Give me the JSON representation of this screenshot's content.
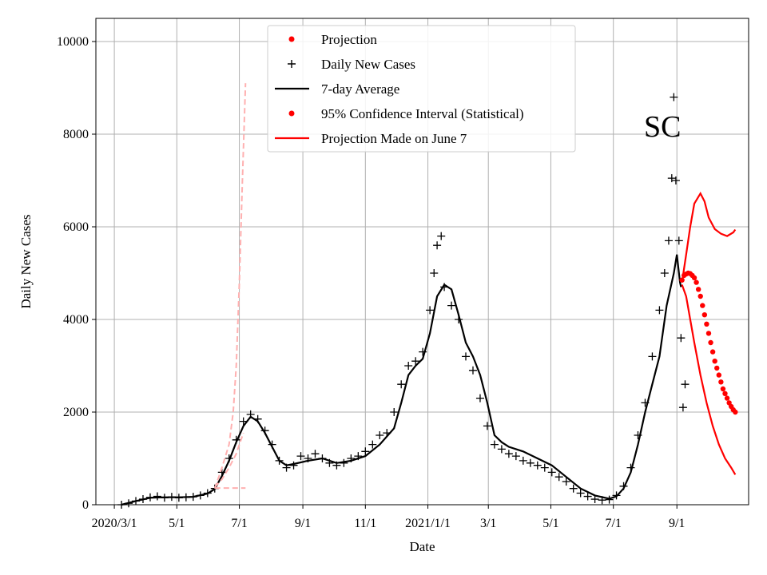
{
  "chart_data": {
    "type": "line",
    "xlabel": "Date",
    "ylabel": "Daily New Cases",
    "annotation": "SC",
    "xlim": [
      "2020-02-12",
      "2021-11-10"
    ],
    "ylim": [
      0,
      10500
    ],
    "grid": true,
    "legend_position": "top-center",
    "x_ticks": [
      {
        "date": "2020-03-01",
        "label": "2020/3/1"
      },
      {
        "date": "2020-05-01",
        "label": "5/1"
      },
      {
        "date": "2020-07-01",
        "label": "7/1"
      },
      {
        "date": "2020-09-01",
        "label": "9/1"
      },
      {
        "date": "2020-11-01",
        "label": "11/1"
      },
      {
        "date": "2021-01-01",
        "label": "2021/1/1"
      },
      {
        "date": "2021-03-01",
        "label": "3/1"
      },
      {
        "date": "2021-05-01",
        "label": "5/1"
      },
      {
        "date": "2021-07-01",
        "label": "7/1"
      },
      {
        "date": "2021-09-01",
        "label": "9/1"
      }
    ],
    "y_ticks": [
      0,
      2000,
      4000,
      6000,
      8000,
      10000
    ],
    "legend": [
      {
        "label": "Projection",
        "marker": "dot",
        "color": "#ff0000"
      },
      {
        "label": "Daily New Cases",
        "marker": "plus",
        "color": "#000000"
      },
      {
        "label": "7-day Average",
        "marker": "line",
        "color": "#000000"
      },
      {
        "label": "95% Confidence Interval (Statistical)",
        "marker": "dot",
        "color": "#ff0000"
      },
      {
        "label": "Projection Made on June 7",
        "marker": "line",
        "color": "#ff0000"
      }
    ],
    "series": [
      {
        "name": "Daily New Cases",
        "kind": "plus",
        "color": "#000000",
        "points": [
          [
            "2020-03-08",
            0
          ],
          [
            "2020-03-15",
            30
          ],
          [
            "2020-03-22",
            80
          ],
          [
            "2020-03-29",
            120
          ],
          [
            "2020-04-05",
            160
          ],
          [
            "2020-04-12",
            180
          ],
          [
            "2020-04-19",
            150
          ],
          [
            "2020-04-26",
            170
          ],
          [
            "2020-05-03",
            150
          ],
          [
            "2020-05-10",
            160
          ],
          [
            "2020-05-17",
            170
          ],
          [
            "2020-05-24",
            200
          ],
          [
            "2020-05-31",
            250
          ],
          [
            "2020-06-07",
            350
          ],
          [
            "2020-06-14",
            700
          ],
          [
            "2020-06-21",
            1000
          ],
          [
            "2020-06-28",
            1400
          ],
          [
            "2020-07-05",
            1800
          ],
          [
            "2020-07-12",
            1950
          ],
          [
            "2020-07-19",
            1850
          ],
          [
            "2020-07-26",
            1600
          ],
          [
            "2020-08-02",
            1300
          ],
          [
            "2020-08-09",
            950
          ],
          [
            "2020-08-16",
            800
          ],
          [
            "2020-08-23",
            850
          ],
          [
            "2020-08-30",
            1050
          ],
          [
            "2020-09-06",
            1000
          ],
          [
            "2020-09-13",
            1100
          ],
          [
            "2020-09-20",
            1000
          ],
          [
            "2020-09-27",
            900
          ],
          [
            "2020-10-04",
            850
          ],
          [
            "2020-10-11",
            900
          ],
          [
            "2020-10-18",
            1000
          ],
          [
            "2020-10-25",
            1050
          ],
          [
            "2020-11-01",
            1150
          ],
          [
            "2020-11-08",
            1300
          ],
          [
            "2020-11-15",
            1500
          ],
          [
            "2020-11-22",
            1550
          ],
          [
            "2020-11-29",
            2000
          ],
          [
            "2020-12-06",
            2600
          ],
          [
            "2020-12-13",
            3000
          ],
          [
            "2020-12-20",
            3100
          ],
          [
            "2020-12-27",
            3300
          ],
          [
            "2021-01-03",
            4200
          ],
          [
            "2021-01-07",
            5000
          ],
          [
            "2021-01-10",
            5600
          ],
          [
            "2021-01-14",
            5800
          ],
          [
            "2021-01-17",
            4700
          ],
          [
            "2021-01-24",
            4300
          ],
          [
            "2021-01-31",
            4000
          ],
          [
            "2021-02-07",
            3200
          ],
          [
            "2021-02-14",
            2900
          ],
          [
            "2021-02-21",
            2300
          ],
          [
            "2021-02-28",
            1700
          ],
          [
            "2021-03-07",
            1300
          ],
          [
            "2021-03-14",
            1200
          ],
          [
            "2021-03-21",
            1100
          ],
          [
            "2021-03-28",
            1050
          ],
          [
            "2021-04-04",
            950
          ],
          [
            "2021-04-11",
            900
          ],
          [
            "2021-04-18",
            850
          ],
          [
            "2021-04-25",
            800
          ],
          [
            "2021-05-02",
            700
          ],
          [
            "2021-05-09",
            600
          ],
          [
            "2021-05-16",
            500
          ],
          [
            "2021-05-23",
            350
          ],
          [
            "2021-05-30",
            250
          ],
          [
            "2021-06-06",
            180
          ],
          [
            "2021-06-13",
            120
          ],
          [
            "2021-06-20",
            100
          ],
          [
            "2021-06-27",
            110
          ],
          [
            "2021-07-04",
            200
          ],
          [
            "2021-07-11",
            400
          ],
          [
            "2021-07-18",
            800
          ],
          [
            "2021-07-25",
            1500
          ],
          [
            "2021-08-01",
            2200
          ],
          [
            "2021-08-08",
            3200
          ],
          [
            "2021-08-15",
            4200
          ],
          [
            "2021-08-20",
            5000
          ],
          [
            "2021-08-24",
            5700
          ],
          [
            "2021-08-27",
            7050
          ],
          [
            "2021-08-29",
            8800
          ],
          [
            "2021-08-31",
            7000
          ],
          [
            "2021-09-03",
            5700
          ],
          [
            "2021-09-05",
            3600
          ],
          [
            "2021-09-07",
            2100
          ],
          [
            "2021-09-09",
            2600
          ]
        ]
      },
      {
        "name": "7-day Average",
        "kind": "line",
        "color": "#000000",
        "points": [
          [
            "2020-03-08",
            0
          ],
          [
            "2020-03-22",
            80
          ],
          [
            "2020-04-05",
            150
          ],
          [
            "2020-04-19",
            160
          ],
          [
            "2020-05-03",
            160
          ],
          [
            "2020-05-17",
            170
          ],
          [
            "2020-05-31",
            240
          ],
          [
            "2020-06-07",
            340
          ],
          [
            "2020-06-14",
            620
          ],
          [
            "2020-06-21",
            950
          ],
          [
            "2020-06-28",
            1350
          ],
          [
            "2020-07-05",
            1700
          ],
          [
            "2020-07-12",
            1900
          ],
          [
            "2020-07-19",
            1800
          ],
          [
            "2020-07-26",
            1550
          ],
          [
            "2020-08-02",
            1250
          ],
          [
            "2020-08-09",
            950
          ],
          [
            "2020-08-16",
            850
          ],
          [
            "2020-08-23",
            880
          ],
          [
            "2020-09-06",
            950
          ],
          [
            "2020-09-20",
            1000
          ],
          [
            "2020-10-04",
            900
          ],
          [
            "2020-10-18",
            950
          ],
          [
            "2020-11-01",
            1050
          ],
          [
            "2020-11-15",
            1300
          ],
          [
            "2020-11-29",
            1650
          ],
          [
            "2020-12-06",
            2200
          ],
          [
            "2020-12-13",
            2800
          ],
          [
            "2020-12-20",
            3000
          ],
          [
            "2020-12-27",
            3150
          ],
          [
            "2021-01-03",
            3700
          ],
          [
            "2021-01-10",
            4500
          ],
          [
            "2021-01-17",
            4750
          ],
          [
            "2021-01-24",
            4650
          ],
          [
            "2021-01-31",
            4100
          ],
          [
            "2021-02-07",
            3500
          ],
          [
            "2021-02-14",
            3200
          ],
          [
            "2021-02-21",
            2800
          ],
          [
            "2021-02-28",
            2200
          ],
          [
            "2021-03-07",
            1500
          ],
          [
            "2021-03-14",
            1350
          ],
          [
            "2021-03-21",
            1250
          ],
          [
            "2021-04-04",
            1150
          ],
          [
            "2021-04-18",
            1000
          ],
          [
            "2021-05-02",
            850
          ],
          [
            "2021-05-16",
            600
          ],
          [
            "2021-05-30",
            350
          ],
          [
            "2021-06-13",
            200
          ],
          [
            "2021-06-27",
            130
          ],
          [
            "2021-07-04",
            180
          ],
          [
            "2021-07-11",
            350
          ],
          [
            "2021-07-18",
            700
          ],
          [
            "2021-07-25",
            1300
          ],
          [
            "2021-08-01",
            2000
          ],
          [
            "2021-08-08",
            2600
          ],
          [
            "2021-08-15",
            3200
          ],
          [
            "2021-08-22",
            4300
          ],
          [
            "2021-08-29",
            5000
          ],
          [
            "2021-09-01",
            5400
          ],
          [
            "2021-09-04",
            4800
          ],
          [
            "2021-09-05",
            4700
          ]
        ]
      },
      {
        "name": "Projection",
        "kind": "dots",
        "color": "#ff0000",
        "points": [
          [
            "2021-09-06",
            4850
          ],
          [
            "2021-09-08",
            4950
          ],
          [
            "2021-09-10",
            4980
          ],
          [
            "2021-09-12",
            5000
          ],
          [
            "2021-09-14",
            4990
          ],
          [
            "2021-09-16",
            4950
          ],
          [
            "2021-09-18",
            4900
          ],
          [
            "2021-09-20",
            4800
          ],
          [
            "2021-09-22",
            4650
          ],
          [
            "2021-09-24",
            4500
          ],
          [
            "2021-09-26",
            4300
          ],
          [
            "2021-09-28",
            4100
          ],
          [
            "2021-09-30",
            3900
          ],
          [
            "2021-10-02",
            3700
          ],
          [
            "2021-10-04",
            3500
          ],
          [
            "2021-10-06",
            3300
          ],
          [
            "2021-10-08",
            3100
          ],
          [
            "2021-10-10",
            2950
          ],
          [
            "2021-10-12",
            2800
          ],
          [
            "2021-10-14",
            2650
          ],
          [
            "2021-10-16",
            2500
          ],
          [
            "2021-10-18",
            2400
          ],
          [
            "2021-10-20",
            2300
          ],
          [
            "2021-10-22",
            2200
          ],
          [
            "2021-10-24",
            2120
          ],
          [
            "2021-10-26",
            2050
          ],
          [
            "2021-10-28",
            2000
          ]
        ]
      },
      {
        "name": "95% Confidence Interval (Statistical)",
        "kind": "line",
        "color": "#ff0000",
        "points": [
          [
            "2021-09-06",
            4800
          ],
          [
            "2021-09-10",
            5400
          ],
          [
            "2021-09-14",
            6000
          ],
          [
            "2021-09-18",
            6500
          ],
          [
            "2021-09-24",
            6720
          ],
          [
            "2021-09-28",
            6550
          ],
          [
            "2021-10-02",
            6200
          ],
          [
            "2021-10-08",
            5950
          ],
          [
            "2021-10-14",
            5850
          ],
          [
            "2021-10-20",
            5800
          ],
          [
            "2021-10-26",
            5880
          ],
          [
            "2021-10-28",
            5940
          ]
        ]
      },
      {
        "name": "95% Confidence Interval (Statistical)",
        "kind": "line",
        "color": "#ff0000",
        "points": [
          [
            "2021-09-06",
            4750
          ],
          [
            "2021-09-10",
            4500
          ],
          [
            "2021-09-14",
            4000
          ],
          [
            "2021-09-18",
            3500
          ],
          [
            "2021-09-24",
            2800
          ],
          [
            "2021-09-30",
            2200
          ],
          [
            "2021-10-06",
            1700
          ],
          [
            "2021-10-12",
            1300
          ],
          [
            "2021-10-18",
            1000
          ],
          [
            "2021-10-24",
            800
          ],
          [
            "2021-10-28",
            650
          ]
        ]
      },
      {
        "name": "Projection Made on June 7",
        "kind": "dashed",
        "color": "#ffb0b0",
        "points": [
          [
            "2020-06-07",
            350
          ],
          [
            "2020-06-14",
            800
          ],
          [
            "2020-06-21",
            1300
          ],
          [
            "2020-06-25",
            2000
          ],
          [
            "2020-06-28",
            3000
          ],
          [
            "2020-07-01",
            4800
          ],
          [
            "2020-07-04",
            7000
          ],
          [
            "2020-07-07",
            9100
          ]
        ]
      },
      {
        "name": "Projection Made on June 7",
        "kind": "dashed",
        "color": "#ffb0b0",
        "points": [
          [
            "2020-06-07",
            380
          ],
          [
            "2020-06-14",
            550
          ],
          [
            "2020-06-21",
            800
          ],
          [
            "2020-06-28",
            1100
          ],
          [
            "2020-07-01",
            1300
          ],
          [
            "2020-07-05",
            1550
          ]
        ]
      },
      {
        "name": "Projection Made on June 7",
        "kind": "dashed",
        "color": "#ffb0b0",
        "points": [
          [
            "2020-06-07",
            360
          ],
          [
            "2020-06-21",
            360
          ],
          [
            "2020-07-07",
            360
          ]
        ]
      }
    ]
  }
}
